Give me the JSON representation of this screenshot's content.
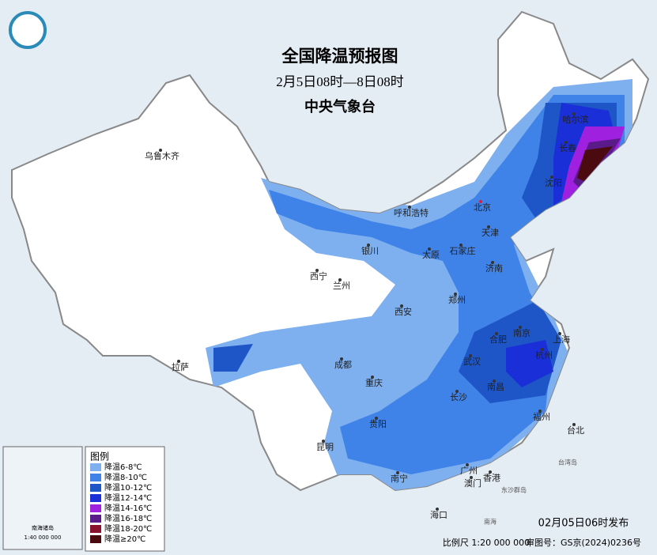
{
  "header": {
    "title": "全国降温预报图",
    "subtitle": "2月5日08时—8日08时",
    "issuer": "中央气象台"
  },
  "cities": [
    "乌鲁木齐",
    "呼和浩特",
    "北京",
    "天津",
    "哈尔滨",
    "长春",
    "沈阳",
    "银川",
    "太原",
    "石家庄",
    "济南",
    "西宁",
    "兰州",
    "郑州",
    "西安",
    "合肥",
    "南京",
    "上海",
    "杭州",
    "武汉",
    "成都",
    "拉萨",
    "重庆",
    "长沙",
    "南昌",
    "福州",
    "台北",
    "贵阳",
    "昆明",
    "南宁",
    "广州",
    "澳门",
    "香港",
    "海口"
  ],
  "places": [
    "东沙群岛",
    "台湾岛",
    "南海"
  ],
  "legend": {
    "title": "图例",
    "items": [
      {
        "label": "降温6-8℃",
        "color": "#7eb0f0"
      },
      {
        "label": "降温8-10℃",
        "color": "#3f82e8"
      },
      {
        "label": "降温10-12℃",
        "color": "#1e56c8"
      },
      {
        "label": "降温12-14℃",
        "color": "#1a2fd8"
      },
      {
        "label": "降温14-16℃",
        "color": "#a020e0"
      },
      {
        "label": "降温16-18℃",
        "color": "#5a1a8a"
      },
      {
        "label": "降温18-20℃",
        "color": "#8a1030"
      },
      {
        "label": "降温≥20℃",
        "color": "#4a0a10"
      }
    ]
  },
  "inset": {
    "title": "南海诸岛",
    "scale": "1:40 000 000"
  },
  "footer": {
    "issued": "02月05日06时发布",
    "scale": "比例尺 1:20 000 000",
    "review": "审图号：GS京(2024)0236号"
  }
}
